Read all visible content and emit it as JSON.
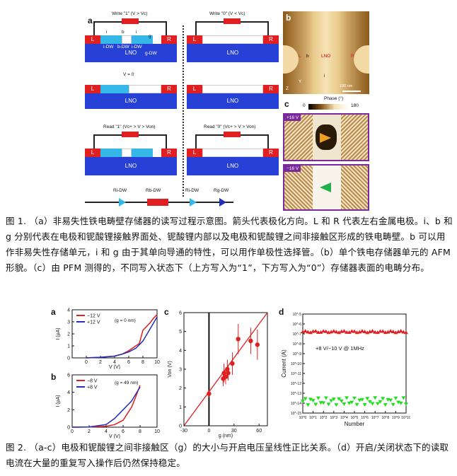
{
  "figure1": {
    "panel_a_label": "a",
    "panel_b_label": "b",
    "panel_c_label": "c",
    "write1_title": "Write \"1\" (V > Vc)",
    "write0_title": "Write \"0\" (V < Vc)",
    "v0_title": "V = 0",
    "read1_title": "Read \"1\" (Vc+ > V > Von)",
    "read0_title": "Read \"0\" (Vc+ > V > Von)",
    "electrode_L": "L",
    "electrode_R": "R",
    "lno": "LNO",
    "dw_labels": [
      "i-DW",
      "b-DW",
      "i-DW",
      "g-DW"
    ],
    "marks": [
      "i",
      "b",
      "i",
      "g"
    ],
    "afm_labels": {
      "L": "L",
      "b": "b",
      "lno": "LNO",
      "R": "R",
      "i": "i",
      "scale": "100 nm",
      "axis_y": "Y",
      "axis_z": "Z"
    },
    "phase_label": "Phase (°)",
    "phase_min": "0",
    "phase_max": "180",
    "pfm_top": "+16 V",
    "pfm_bottom": "−16 V",
    "circuit_labels": [
      "Ri-DW",
      "Rb-DW",
      "Ri-DW",
      "Rg-DW"
    ],
    "caption": "图 1. （a）非易失性铁电畴壁存储器的读写过程示意图。箭头代表极化方向。L 和 R 代表左右金属电极。i、b 和 g 分别代表在电极和铌酸锂接触界面处、铌酸锂内部以及电极和铌酸锂之间非接触区形成的铁电畴壁。b 可以用作非易失性存储单元，i 和 g 由于其单向导通的特性，可以用作单极性选择管。（b）单个铁电存储器单元的 AFM 形貌。（c）由 PFM 测得的，不同写入状态下（上方写入为“1”，下方写入为“0”）存储器表面的电畴分布。"
  },
  "figure2": {
    "panel_a_label": "a",
    "panel_b_label": "b",
    "panel_c_label": "c",
    "panel_d_label": "d",
    "caption": "图 2. （a-c）电极和铌酸锂之间非接触区（g）的大小与开启电压呈线性正比关系。（d）开启/关闭状态下的读取电流在大量的重复写入操作后仍然保持稳定。",
    "note_d": "+8 V/−10 V @ 1MHz",
    "annot_a": "(g = 0 nm)",
    "annot_b": "(g = 49 nm)",
    "von": "Von",
    "vc": "Vc+"
  },
  "chart_data": [
    {
      "type": "line",
      "panel": "a",
      "xlabel": "V (V)",
      "ylabel": "I (μA)",
      "xlim": [
        -2,
        10
      ],
      "ylim": [
        0,
        4
      ],
      "xticks": [
        0,
        2,
        4,
        6,
        8,
        10
      ],
      "yticks": [
        0,
        1,
        2,
        3,
        4
      ],
      "legend": "top-left",
      "series": [
        {
          "name": "−12 V",
          "color": "#e02020",
          "x": [
            0,
            2,
            4,
            5,
            6,
            7,
            7.5,
            8,
            8.5,
            9,
            9.5,
            10
          ],
          "y": [
            0,
            0.05,
            0.15,
            0.3,
            0.6,
            1.0,
            1.2,
            2.3,
            2.6,
            2.9,
            3.3,
            3.6
          ]
        },
        {
          "name": "+12 V",
          "color": "#1f2fb8",
          "x": [
            0,
            2,
            4,
            5,
            6,
            7,
            8,
            9,
            10
          ],
          "y": [
            0,
            0.05,
            0.15,
            0.3,
            0.5,
            0.8,
            1.4,
            2.4,
            3.4
          ]
        }
      ]
    },
    {
      "type": "line",
      "panel": "b",
      "xlabel": "V (V)",
      "ylabel": "I (μA)",
      "xlim": [
        0,
        10
      ],
      "ylim": [
        0,
        6
      ],
      "xticks": [
        0,
        2,
        4,
        6,
        8,
        10
      ],
      "yticks": [
        0,
        2,
        4,
        6
      ],
      "legend": "top-left",
      "series": [
        {
          "name": "−8 V",
          "color": "#e02020",
          "x": [
            0,
            2,
            4,
            5,
            6,
            7,
            7.5,
            8
          ],
          "y": [
            0,
            0.02,
            0.1,
            0.3,
            0.8,
            2.3,
            3.5,
            4.8
          ]
        },
        {
          "name": "+8 V",
          "color": "#1f2fb8",
          "x": [
            0,
            2,
            4,
            5,
            6,
            7,
            7.5,
            8
          ],
          "y": [
            0,
            0.03,
            0.3,
            1.0,
            2.0,
            3.0,
            3.8,
            4.6
          ]
        }
      ]
    },
    {
      "type": "scatter",
      "panel": "c",
      "xlabel": "g (nm)",
      "ylabel": "Von (V)",
      "xlim": [
        -30,
        70
      ],
      "ylim": [
        0,
        6
      ],
      "xticks": [
        -30,
        0,
        30,
        60
      ],
      "yticks": [
        0,
        1,
        2,
        3,
        4,
        5,
        6
      ],
      "points": [
        {
          "x": 0,
          "y": 1.7,
          "err": 0.2
        },
        {
          "x": 17,
          "y": 2.5,
          "err": 0.4
        },
        {
          "x": 18,
          "y": 2.8,
          "err": 0.5
        },
        {
          "x": 20,
          "y": 2.6,
          "err": 0.4
        },
        {
          "x": 22,
          "y": 3.0,
          "err": 0.5
        },
        {
          "x": 23,
          "y": 2.8,
          "err": 0.4
        },
        {
          "x": 28,
          "y": 3.3,
          "err": 0.6
        },
        {
          "x": 35,
          "y": 4.6,
          "err": 0.8
        },
        {
          "x": 50,
          "y": 4.5,
          "err": 0.7
        },
        {
          "x": 58,
          "y": 4.3,
          "err": 0.8
        }
      ],
      "fit": {
        "x": [
          -30,
          70
        ],
        "y": [
          -0.25,
          6.2
        ]
      }
    },
    {
      "type": "scatter",
      "panel": "d",
      "xlabel": "Number",
      "ylabel": "Current (A)",
      "xscale": "log",
      "yscale": "log",
      "xlim": [
        1,
        10000000000
      ],
      "ylim": [
        1e-15,
        1e-05
      ],
      "xtick_labels": [
        "10^0",
        "10^1",
        "10^2",
        "10^3",
        "10^4",
        "10^5",
        "10^6",
        "10^7",
        "10^8",
        "10^9",
        "10^10"
      ],
      "ytick_labels": [
        "10^-15",
        "10^-14",
        "10^-13",
        "10^-12",
        "10^-11",
        "10^-10",
        "10^-9",
        "10^-8",
        "10^-7",
        "10^-6",
        "10^-5"
      ],
      "series": [
        {
          "name": "on",
          "color": "#e02020",
          "marker": "triangle-up",
          "log_y_mean": -6.8
        },
        {
          "name": "off",
          "color": "#22dd22",
          "marker": "triangle-down",
          "log_y_mean": -13.8
        }
      ]
    }
  ]
}
